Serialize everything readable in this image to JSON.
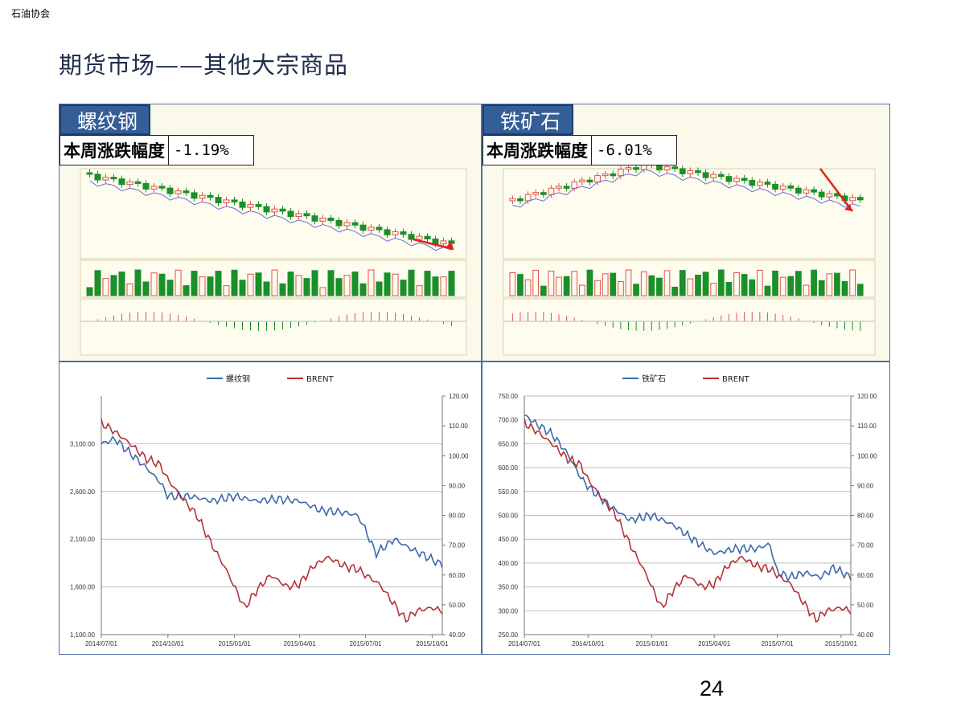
{
  "header": {
    "org": "石油协会",
    "title": "期货市场——其他大宗商品"
  },
  "page_number": "24",
  "change_label": "本周涨跌幅度",
  "panels": {
    "rebar": {
      "name": "螺纹钢",
      "weekly_change": "-1.19%"
    },
    "iron_ore": {
      "name": "铁矿石",
      "weekly_change": "-6.01%"
    }
  },
  "colors": {
    "primary_series": "#3b6aa8",
    "brent_series": "#b43235",
    "tag_bg": "#345e97",
    "candle_up": "#e05050",
    "candle_down": "#1a8f2a"
  },
  "chart_data": [
    {
      "type": "line",
      "x_ticks": [
        "2014/07/01",
        "2014/10/01",
        "2015/01/01",
        "2015/04/01",
        "2015/07/01",
        "2015/10/01"
      ],
      "x_range": [
        "2014/07/01",
        "2015/10/15"
      ],
      "left_axis": {
        "ticks": [
          "1,100.00",
          "1,600.00",
          "2,100.00",
          "2,600.00",
          "3,100.00"
        ],
        "range": [
          1100,
          3600
        ]
      },
      "right_axis": {
        "ticks": [
          "40.00",
          "50.00",
          "60.00",
          "70.00",
          "80.00",
          "90.00",
          "100.00",
          "110.00",
          "120.00"
        ],
        "range": [
          40,
          120
        ]
      },
      "grid": true,
      "legend_position": "top-center",
      "series": [
        {
          "name": "螺纹钢",
          "axis": "left",
          "color": "#3b6aa8",
          "x": [
            "2014/07/01",
            "2014/07/20",
            "2014/08/10",
            "2014/09/01",
            "2014/09/20",
            "2014/10/01",
            "2014/11/01",
            "2014/12/01",
            "2015/01/01",
            "2015/02/01",
            "2015/03/01",
            "2015/04/01",
            "2015/05/01",
            "2015/06/01",
            "2015/06/20",
            "2015/07/01",
            "2015/07/15",
            "2015/08/10",
            "2015/09/01",
            "2015/09/20",
            "2015/10/15"
          ],
          "values": [
            3100,
            3150,
            3000,
            2850,
            2700,
            2550,
            2550,
            2500,
            2550,
            2500,
            2520,
            2500,
            2400,
            2380,
            2350,
            2200,
            1950,
            2100,
            2000,
            1930,
            1830
          ]
        },
        {
          "name": "BRENT",
          "axis": "right",
          "color": "#b43235",
          "x": [
            "2014/07/01",
            "2014/07/20",
            "2014/08/10",
            "2014/09/01",
            "2014/09/20",
            "2014/10/01",
            "2014/10/20",
            "2014/11/10",
            "2014/12/01",
            "2014/12/20",
            "2015/01/01",
            "2015/01/15",
            "2015/02/01",
            "2015/02/20",
            "2015/03/15",
            "2015/04/01",
            "2015/04/20",
            "2015/05/10",
            "2015/06/01",
            "2015/06/20",
            "2015/07/01",
            "2015/07/20",
            "2015/08/10",
            "2015/08/25",
            "2015/09/10",
            "2015/09/30",
            "2015/10/15"
          ],
          "values": [
            111,
            108,
            104,
            99,
            97,
            92,
            86,
            80,
            70,
            62,
            56,
            49,
            55,
            60,
            56,
            57,
            63,
            66,
            63,
            62,
            60,
            57,
            50,
            45,
            48,
            49,
            48
          ]
        }
      ]
    },
    {
      "type": "line",
      "x_ticks": [
        "2014/07/01",
        "2014/10/01",
        "2015/01/01",
        "2015/04/01",
        "2015/07/01",
        "2015/10/01"
      ],
      "x_range": [
        "2014/07/01",
        "2015/10/15"
      ],
      "left_axis": {
        "ticks": [
          "250.00",
          "300.00",
          "350.00",
          "400.00",
          "450.00",
          "500.00",
          "550.00",
          "600.00",
          "650.00",
          "700.00",
          "750.00"
        ],
        "range": [
          250,
          750
        ]
      },
      "right_axis": {
        "ticks": [
          "40.00",
          "50.00",
          "60.00",
          "70.00",
          "80.00",
          "90.00",
          "100.00",
          "110.00",
          "120.00"
        ],
        "range": [
          40,
          120
        ]
      },
      "grid": true,
      "legend_position": "top-center",
      "series": [
        {
          "name": "铁矿石",
          "axis": "left",
          "color": "#3b6aa8",
          "x": [
            "2014/07/01",
            "2014/07/20",
            "2014/08/10",
            "2014/09/01",
            "2014/09/20",
            "2014/10/01",
            "2014/11/01",
            "2014/12/01",
            "2015/01/01",
            "2015/02/01",
            "2015/03/01",
            "2015/04/01",
            "2015/05/01",
            "2015/06/01",
            "2015/06/20",
            "2015/07/01",
            "2015/07/20",
            "2015/08/10",
            "2015/09/01",
            "2015/09/20",
            "2015/10/15"
          ],
          "values": [
            710,
            690,
            670,
            630,
            580,
            560,
            520,
            490,
            500,
            480,
            450,
            420,
            430,
            430,
            440,
            380,
            370,
            380,
            370,
            390,
            370
          ]
        },
        {
          "name": "BRENT",
          "axis": "right",
          "color": "#b43235",
          "x": [
            "2014/07/01",
            "2014/07/20",
            "2014/08/10",
            "2014/09/01",
            "2014/09/20",
            "2014/10/01",
            "2014/10/20",
            "2014/11/10",
            "2014/12/01",
            "2014/12/20",
            "2015/01/01",
            "2015/01/15",
            "2015/02/01",
            "2015/02/20",
            "2015/03/15",
            "2015/04/01",
            "2015/04/20",
            "2015/05/10",
            "2015/06/01",
            "2015/06/20",
            "2015/07/01",
            "2015/07/20",
            "2015/08/10",
            "2015/08/25",
            "2015/09/10",
            "2015/09/30",
            "2015/10/15"
          ],
          "values": [
            111,
            108,
            104,
            99,
            97,
            92,
            86,
            80,
            70,
            62,
            56,
            49,
            55,
            60,
            56,
            57,
            63,
            66,
            63,
            62,
            60,
            57,
            50,
            45,
            48,
            49,
            48
          ]
        }
      ]
    }
  ]
}
